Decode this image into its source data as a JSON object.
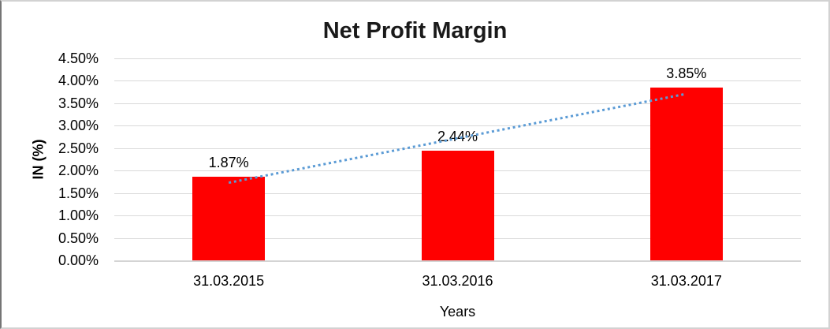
{
  "chart_data": {
    "type": "bar",
    "title": "Net Profit Margin",
    "xlabel": "Years",
    "ylabel": "IN (%)",
    "categories": [
      "31.03.2015",
      "31.03.2016",
      "31.03.2017"
    ],
    "values": [
      1.87,
      2.44,
      3.85
    ],
    "value_labels": [
      "1.87%",
      "2.44%",
      "3.85%"
    ],
    "ylim": [
      0,
      4.5
    ],
    "ytick_step": 0.5,
    "yticks_top_to_bottom": [
      "4.50%",
      "4.00%",
      "3.50%",
      "3.00%",
      "2.50%",
      "2.00%",
      "1.50%",
      "1.00%",
      "0.50%",
      "0.00%"
    ],
    "grid": true,
    "legend": false,
    "colors": {
      "bar": "#FF0000",
      "trendline": "#5B9BD5",
      "gridline": "#D9D9D9",
      "text": "#000000"
    },
    "trendline": {
      "type": "linear",
      "line_style": "dotted",
      "start_value": 1.73,
      "end_value": 3.71
    }
  }
}
